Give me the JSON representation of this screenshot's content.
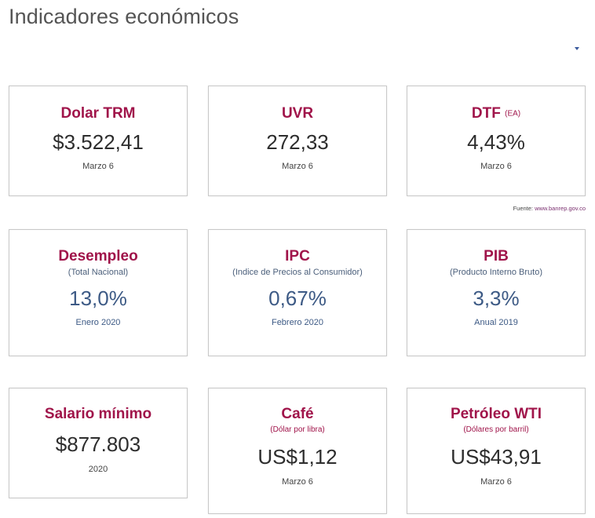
{
  "page": {
    "title": "Indicadores económicos"
  },
  "source": {
    "prefix": "Fuente:",
    "link": "www.banrep.gov.co"
  },
  "cards": {
    "dolar": {
      "title": "Dolar TRM",
      "value": "$3.522,41",
      "date": "Marzo 6"
    },
    "uvr": {
      "title": "UVR",
      "value": "272,33",
      "date": "Marzo 6"
    },
    "dtf": {
      "title": "DTF",
      "suffix": "(EA)",
      "value": "4,43%",
      "date": "Marzo 6"
    },
    "desempleo": {
      "title": "Desempleo",
      "subtitle": "(Total Nacional)",
      "value": "13,0%",
      "date": "Enero 2020"
    },
    "ipc": {
      "title": "IPC",
      "subtitle": "(Indice de Precios al Consumidor)",
      "value": "0,67%",
      "date": "Febrero 2020"
    },
    "pib": {
      "title": "PIB",
      "subtitle": "(Producto Interno Bruto)",
      "value": "3,3%",
      "date": "Anual 2019"
    },
    "salario": {
      "title": "Salario mínimo",
      "value": "$877.803",
      "date": "2020"
    },
    "cafe": {
      "title": "Café",
      "subtitle": "(Dólar por libra)",
      "value": "US$1,12",
      "date": "Marzo 6"
    },
    "petroleo": {
      "title": "Petróleo WTI",
      "subtitle": "(Dólares por barril)",
      "value": "US$43,91",
      "date": "Marzo 6"
    }
  },
  "colors": {
    "title_accent": "#a0144a",
    "value_blue": "#3d5a85",
    "border": "#c8c8c8"
  },
  "icons": {
    "dropdown": "chevron-down-icon"
  }
}
